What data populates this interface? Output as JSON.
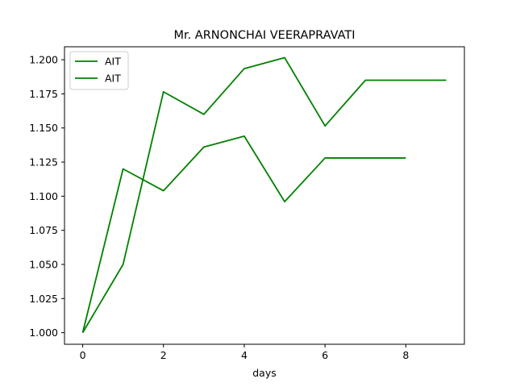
{
  "chart_data": {
    "type": "line",
    "title": "Mr. ARNONCHAI VEERAPRAVATI",
    "xlabel": "days",
    "ylabel": "",
    "xlim": [
      -0.45,
      9.45
    ],
    "ylim": [
      0.9915,
      1.2095
    ],
    "xticks": [
      0,
      2,
      4,
      6,
      8
    ],
    "xtick_labels": [
      "0",
      "2",
      "4",
      "6",
      "8"
    ],
    "yticks": [
      1.0,
      1.025,
      1.05,
      1.075,
      1.1,
      1.125,
      1.15,
      1.175,
      1.2
    ],
    "ytick_labels": [
      "1.000",
      "1.025",
      "1.050",
      "1.075",
      "1.100",
      "1.125",
      "1.150",
      "1.175",
      "1.200"
    ],
    "grid": false,
    "legend_position": "top-left",
    "series": [
      {
        "name": "AIT",
        "color": "#008000",
        "x": [
          0,
          1,
          2,
          3,
          4,
          5,
          6,
          7,
          8
        ],
        "y": [
          1.0,
          1.12,
          1.104,
          1.136,
          1.144,
          1.096,
          1.128,
          1.128,
          1.128
        ]
      },
      {
        "name": "AIT",
        "color": "#008000",
        "x": [
          0,
          1,
          2,
          3,
          4,
          5,
          6,
          7,
          8,
          9
        ],
        "y": [
          1.0,
          1.05,
          1.1765,
          1.16,
          1.1935,
          1.2015,
          1.1515,
          1.185,
          1.185,
          1.185
        ]
      }
    ]
  }
}
